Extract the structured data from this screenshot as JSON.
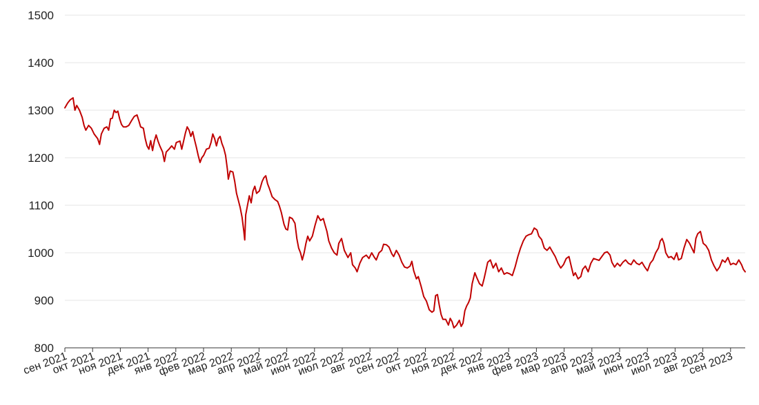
{
  "chart_data": {
    "type": "line",
    "title": "",
    "xlabel": "",
    "ylabel": "",
    "ylim": [
      800,
      1500
    ],
    "yticks": [
      800,
      900,
      1000,
      1100,
      1200,
      1300,
      1400,
      1500
    ],
    "grid": "horizontal",
    "line_color": "#c00000",
    "grid_color": "#e6e6e6",
    "x_tick_labels": [
      "сен 2021",
      "окт 2021",
      "ноя 2021",
      "дек 2021",
      "янв 2022",
      "фев 2022",
      "мар 2022",
      "апр 2022",
      "май 2022",
      "июн 2022",
      "июл 2022",
      "авг 2022",
      "сен 2022",
      "окт 2022",
      "ноя 2022",
      "дек 2022",
      "янв 2023",
      "фев 2023",
      "мар 2023",
      "апр 2023",
      "май 2023",
      "июн 2023",
      "июл 2023",
      "авг 2023",
      "сен 2023"
    ],
    "x_range_months": [
      0,
      25.2
    ],
    "series": [
      {
        "points": [
          [
            0,
            1305
          ],
          [
            0.15,
            1315
          ],
          [
            0.3,
            1322
          ],
          [
            0.45,
            1326
          ],
          [
            0.55,
            1300
          ],
          [
            0.65,
            1310
          ],
          [
            0.8,
            1300
          ],
          [
            0.95,
            1285
          ],
          [
            1.05,
            1268
          ],
          [
            1.15,
            1258
          ],
          [
            1.3,
            1268
          ],
          [
            1.45,
            1262
          ],
          [
            1.6,
            1250
          ],
          [
            1.8,
            1240
          ],
          [
            1.9,
            1228
          ],
          [
            2.0,
            1250
          ],
          [
            2.15,
            1262
          ],
          [
            2.3,
            1265
          ],
          [
            2.4,
            1258
          ],
          [
            2.5,
            1282
          ],
          [
            2.6,
            1283
          ],
          [
            2.7,
            1300
          ],
          [
            2.8,
            1295
          ],
          [
            2.9,
            1298
          ],
          [
            3.0,
            1282
          ],
          [
            3.1,
            1270
          ],
          [
            3.2,
            1265
          ],
          [
            3.35,
            1265
          ],
          [
            3.5,
            1268
          ],
          [
            3.65,
            1278
          ],
          [
            3.8,
            1287
          ],
          [
            3.95,
            1290
          ],
          [
            4.05,
            1278
          ],
          [
            4.15,
            1265
          ],
          [
            4.3,
            1262
          ],
          [
            4.4,
            1240
          ],
          [
            4.5,
            1225
          ],
          [
            4.6,
            1218
          ],
          [
            4.7,
            1236
          ],
          [
            4.8,
            1215
          ],
          [
            4.9,
            1235
          ],
          [
            5.0,
            1248
          ],
          [
            5.1,
            1235
          ],
          [
            5.2,
            1225
          ],
          [
            5.35,
            1212
          ],
          [
            5.45,
            1192
          ],
          [
            5.55,
            1212
          ],
          [
            5.7,
            1218
          ],
          [
            5.85,
            1225
          ],
          [
            6.0,
            1218
          ],
          [
            6.1,
            1232
          ],
          [
            6.3,
            1235
          ],
          [
            6.4,
            1218
          ],
          [
            6.5,
            1235
          ],
          [
            6.6,
            1252
          ],
          [
            6.7,
            1265
          ],
          [
            6.8,
            1258
          ],
          [
            6.9,
            1245
          ],
          [
            7.0,
            1255
          ],
          [
            7.1,
            1238
          ],
          [
            7.2,
            1222
          ],
          [
            7.3,
            1205
          ],
          [
            7.4,
            1190
          ],
          [
            7.5,
            1200
          ],
          [
            7.6,
            1205
          ],
          [
            7.75,
            1218
          ],
          [
            7.9,
            1220
          ],
          [
            8.0,
            1232
          ],
          [
            8.1,
            1250
          ],
          [
            8.2,
            1240
          ],
          [
            8.3,
            1225
          ],
          [
            8.4,
            1240
          ],
          [
            8.5,
            1245
          ],
          [
            8.6,
            1230
          ],
          [
            8.7,
            1220
          ],
          [
            8.8,
            1205
          ],
          [
            8.9,
            1175
          ],
          [
            8.95,
            1155
          ],
          [
            9.05,
            1172
          ],
          [
            9.2,
            1170
          ],
          [
            9.3,
            1150
          ],
          [
            9.4,
            1125
          ],
          [
            9.5,
            1110
          ],
          [
            9.6,
            1095
          ],
          [
            9.7,
            1075
          ],
          [
            9.8,
            1045
          ],
          [
            9.85,
            1027
          ],
          [
            9.9,
            1080
          ],
          [
            10.0,
            1100
          ],
          [
            10.1,
            1120
          ],
          [
            10.2,
            1105
          ],
          [
            10.3,
            1130
          ],
          [
            10.4,
            1140
          ],
          [
            10.5,
            1125
          ],
          [
            10.65,
            1130
          ],
          [
            10.8,
            1150
          ],
          [
            10.9,
            1158
          ],
          [
            11.0,
            1162
          ],
          [
            11.1,
            1145
          ],
          [
            11.2,
            1135
          ],
          [
            11.35,
            1118
          ],
          [
            11.5,
            1112
          ],
          [
            11.65,
            1108
          ],
          [
            11.75,
            1098
          ],
          [
            11.85,
            1085
          ],
          [
            12.0,
            1060
          ],
          [
            12.1,
            1050
          ],
          [
            12.2,
            1048
          ],
          [
            12.3,
            1075
          ],
          [
            12.45,
            1072
          ],
          [
            12.6,
            1062
          ],
          [
            12.7,
            1030
          ],
          [
            12.8,
            1010
          ],
          [
            12.9,
            1000
          ],
          [
            13.0,
            985
          ],
          [
            13.1,
            1000
          ],
          [
            13.2,
            1020
          ],
          [
            13.3,
            1035
          ],
          [
            13.4,
            1025
          ],
          [
            13.55,
            1035
          ],
          [
            13.7,
            1058
          ],
          [
            13.85,
            1078
          ],
          [
            14.0,
            1068
          ],
          [
            14.15,
            1072
          ],
          [
            14.25,
            1058
          ],
          [
            14.35,
            1045
          ],
          [
            14.45,
            1025
          ],
          [
            14.6,
            1010
          ],
          [
            14.75,
            1000
          ],
          [
            14.9,
            995
          ],
          [
            15.0,
            1020
          ],
          [
            15.15,
            1030
          ],
          [
            15.3,
            1005
          ],
          [
            15.5,
            990
          ],
          [
            15.65,
            1000
          ],
          [
            15.75,
            975
          ],
          [
            15.9,
            968
          ],
          [
            16.0,
            960
          ],
          [
            16.15,
            978
          ],
          [
            16.3,
            990
          ],
          [
            16.5,
            995
          ],
          [
            16.65,
            988
          ],
          [
            16.8,
            1000
          ],
          [
            16.95,
            990
          ],
          [
            17.05,
            985
          ],
          [
            17.2,
            1000
          ],
          [
            17.35,
            1005
          ],
          [
            17.45,
            1018
          ],
          [
            17.6,
            1017
          ],
          [
            17.75,
            1012
          ],
          [
            17.9,
            998
          ],
          [
            18.0,
            992
          ],
          [
            18.15,
            1005
          ],
          [
            18.3,
            995
          ],
          [
            18.45,
            980
          ],
          [
            18.6,
            970
          ],
          [
            18.75,
            968
          ],
          [
            18.9,
            972
          ],
          [
            19.0,
            982
          ],
          [
            19.1,
            962
          ],
          [
            19.25,
            945
          ],
          [
            19.35,
            950
          ],
          [
            19.5,
            930
          ],
          [
            19.65,
            908
          ],
          [
            19.8,
            898
          ],
          [
            19.95,
            880
          ],
          [
            20.1,
            875
          ],
          [
            20.2,
            878
          ],
          [
            20.3,
            910
          ],
          [
            20.4,
            912
          ],
          [
            20.5,
            890
          ],
          [
            20.6,
            870
          ],
          [
            20.7,
            860
          ],
          [
            20.85,
            860
          ],
          [
            21.0,
            848
          ],
          [
            21.1,
            862
          ],
          [
            21.2,
            855
          ],
          [
            21.3,
            842
          ],
          [
            21.45,
            848
          ],
          [
            21.6,
            858
          ],
          [
            21.7,
            845
          ],
          [
            21.8,
            852
          ],
          [
            21.9,
            878
          ],
          [
            22.0,
            888
          ],
          [
            22.1,
            895
          ],
          [
            22.2,
            905
          ],
          [
            22.3,
            935
          ],
          [
            22.45,
            958
          ],
          [
            22.55,
            948
          ],
          [
            22.7,
            935
          ],
          [
            22.85,
            930
          ],
          [
            22.95,
            945
          ],
          [
            23.05,
            962
          ],
          [
            23.15,
            980
          ],
          [
            23.3,
            985
          ],
          [
            23.45,
            968
          ],
          [
            23.6,
            978
          ],
          [
            23.75,
            960
          ],
          [
            23.9,
            968
          ],
          [
            24.05,
            955
          ],
          [
            24.2,
            958
          ],
          [
            24.35,
            956
          ],
          [
            24.5,
            952
          ],
          [
            24.65,
            970
          ],
          [
            24.8,
            992
          ],
          [
            24.95,
            1010
          ],
          [
            25.1,
            1025
          ],
          [
            25.25,
            1035
          ],
          [
            25.4,
            1038
          ],
          [
            25.55,
            1040
          ],
          [
            25.7,
            1052
          ],
          [
            25.85,
            1048
          ],
          [
            25.95,
            1035
          ],
          [
            26.1,
            1028
          ],
          [
            26.25,
            1010
          ],
          [
            26.4,
            1005
          ],
          [
            26.55,
            1012
          ],
          [
            26.7,
            1002
          ],
          [
            26.85,
            992
          ],
          [
            27.0,
            978
          ],
          [
            27.15,
            968
          ],
          [
            27.3,
            975
          ],
          [
            27.45,
            988
          ],
          [
            27.6,
            992
          ],
          [
            27.75,
            968
          ],
          [
            27.85,
            952
          ],
          [
            27.95,
            958
          ],
          [
            28.1,
            945
          ],
          [
            28.25,
            950
          ],
          [
            28.35,
            965
          ],
          [
            28.5,
            972
          ],
          [
            28.65,
            960
          ],
          [
            28.8,
            978
          ],
          [
            28.95,
            988
          ],
          [
            29.1,
            986
          ],
          [
            29.25,
            984
          ],
          [
            29.4,
            992
          ],
          [
            29.55,
            1000
          ],
          [
            29.7,
            1002
          ],
          [
            29.85,
            995
          ],
          [
            29.95,
            980
          ],
          [
            30.1,
            970
          ],
          [
            30.25,
            978
          ],
          [
            30.4,
            972
          ],
          [
            30.55,
            980
          ],
          [
            30.7,
            985
          ],
          [
            30.85,
            978
          ],
          [
            31.0,
            975
          ],
          [
            31.15,
            985
          ],
          [
            31.3,
            978
          ],
          [
            31.45,
            975
          ],
          [
            31.6,
            980
          ],
          [
            31.75,
            970
          ],
          [
            31.9,
            962
          ],
          [
            32.05,
            978
          ],
          [
            32.2,
            985
          ],
          [
            32.35,
            1000
          ],
          [
            32.5,
            1010
          ],
          [
            32.6,
            1025
          ],
          [
            32.7,
            1030
          ],
          [
            32.8,
            1020
          ],
          [
            32.9,
            1000
          ],
          [
            33.05,
            990
          ],
          [
            33.2,
            992
          ],
          [
            33.35,
            986
          ],
          [
            33.5,
            1000
          ],
          [
            33.6,
            985
          ],
          [
            33.75,
            988
          ],
          [
            33.9,
            1010
          ],
          [
            34.05,
            1028
          ],
          [
            34.2,
            1020
          ],
          [
            34.35,
            1008
          ],
          [
            34.45,
            1000
          ],
          [
            34.55,
            1030
          ],
          [
            34.65,
            1040
          ],
          [
            34.8,
            1045
          ],
          [
            34.95,
            1020
          ],
          [
            35.1,
            1015
          ],
          [
            35.25,
            1005
          ],
          [
            35.4,
            985
          ],
          [
            35.55,
            972
          ],
          [
            35.7,
            962
          ],
          [
            35.85,
            970
          ],
          [
            36.0,
            985
          ],
          [
            36.15,
            980
          ],
          [
            36.3,
            990
          ],
          [
            36.45,
            975
          ],
          [
            36.6,
            978
          ],
          [
            36.75,
            975
          ],
          [
            36.9,
            985
          ],
          [
            37.05,
            975
          ],
          [
            37.15,
            965
          ],
          [
            37.25,
            960
          ]
        ]
      }
    ]
  }
}
